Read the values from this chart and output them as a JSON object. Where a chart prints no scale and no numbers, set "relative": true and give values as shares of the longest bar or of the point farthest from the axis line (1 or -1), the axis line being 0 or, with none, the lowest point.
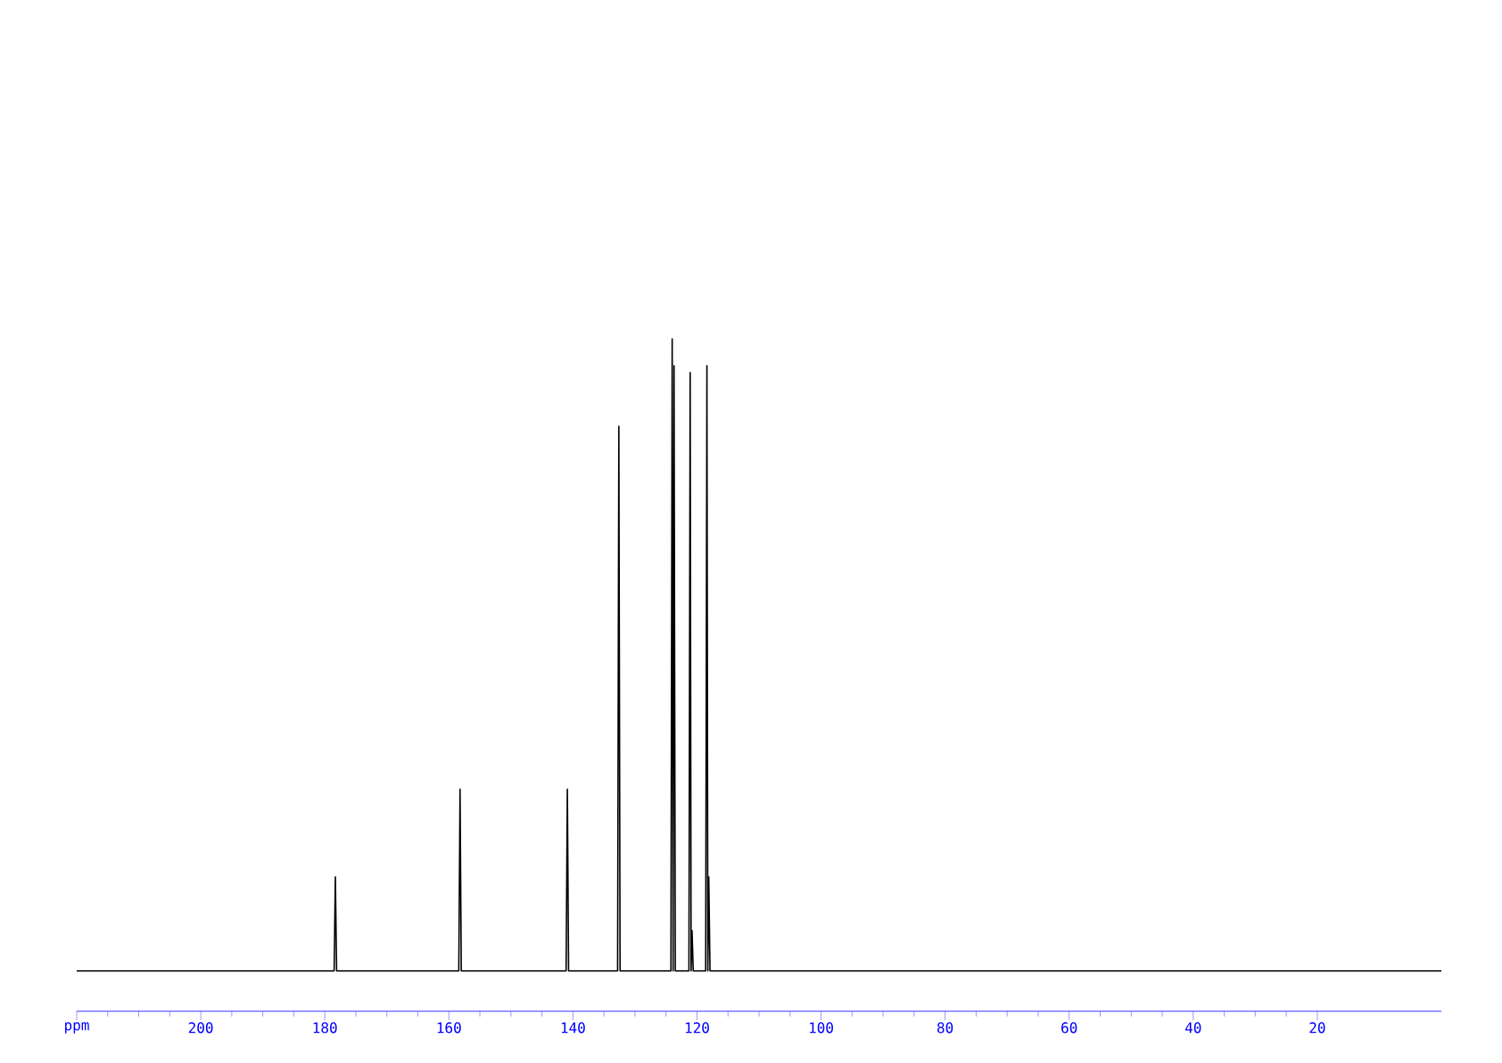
{
  "chart_data": {
    "type": "line",
    "relative": true,
    "color": "#000000",
    "marker": "none",
    "line_style": "solid",
    "xlim": [
      220,
      0
    ],
    "xticks": [
      {
        "value": 220,
        "label": "ppm"
      },
      200,
      180,
      160,
      140,
      120,
      100,
      80,
      60,
      40,
      20
    ],
    "x": [
      220,
      178.5,
      178.3,
      178.1,
      158.4,
      158.2,
      158.0,
      141.1,
      140.9,
      140.7,
      132.8,
      132.6,
      132.4,
      124.2,
      124.0,
      123.85,
      123.7,
      123.5,
      121.3,
      121.1,
      120.95,
      120.8,
      120.6,
      118.6,
      118.4,
      118.25,
      118.1,
      117.9,
      0
    ],
    "values": [
      0.06,
      0.06,
      0.2,
      0.06,
      0.06,
      0.33,
      0.06,
      0.06,
      0.33,
      0.06,
      0.06,
      0.87,
      0.06,
      0.06,
      1.0,
      0.06,
      0.96,
      0.06,
      0.06,
      0.95,
      0.06,
      0.12,
      0.06,
      0.06,
      0.96,
      0.06,
      0.2,
      0.06,
      0.06
    ]
  }
}
